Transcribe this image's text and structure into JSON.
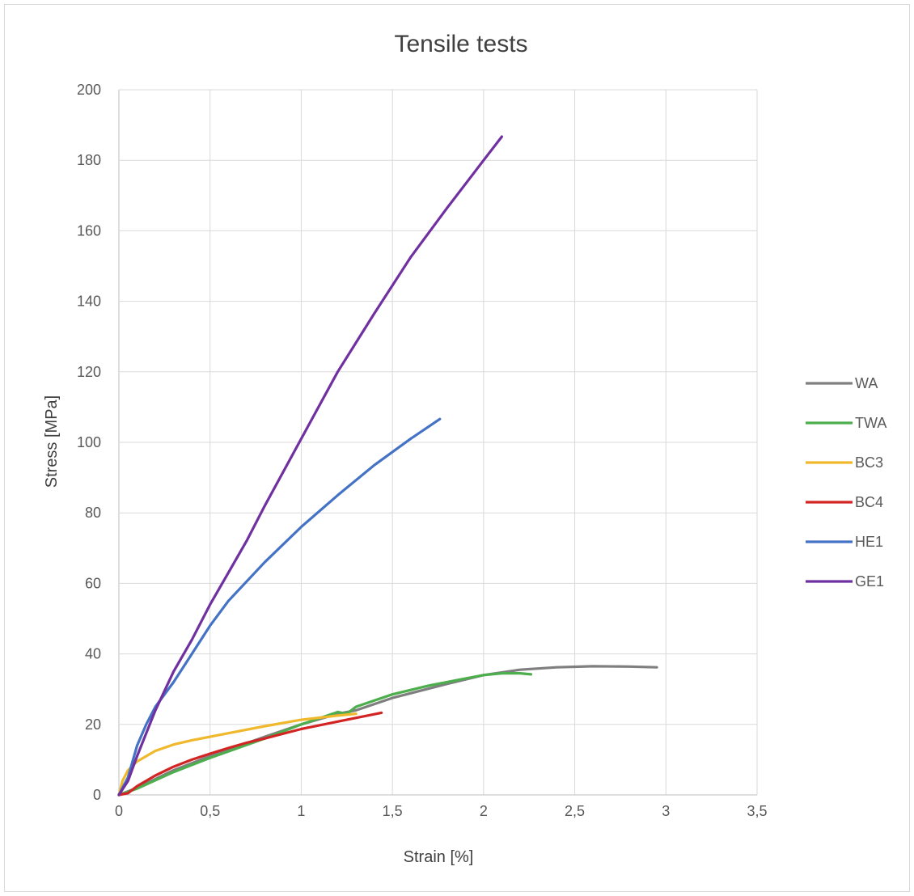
{
  "chart_data": {
    "type": "line",
    "title": "Tensile tests",
    "xlabel": "Strain [%]",
    "ylabel": "Stress [MPa]",
    "xlim": [
      0,
      3.5
    ],
    "ylim": [
      0,
      200
    ],
    "xticks": [
      "0",
      "0,5",
      "1",
      "1,5",
      "2",
      "2,5",
      "3",
      "3,5"
    ],
    "xtick_values": [
      0,
      0.5,
      1,
      1.5,
      2,
      2.5,
      3,
      3.5
    ],
    "yticks": [
      "0",
      "20",
      "40",
      "60",
      "80",
      "100",
      "120",
      "140",
      "160",
      "180",
      "200"
    ],
    "ytick_values": [
      0,
      20,
      40,
      60,
      80,
      100,
      120,
      140,
      160,
      180,
      200
    ],
    "grid": true,
    "legend_position": "right",
    "series": [
      {
        "name": "WA",
        "color": "#7f7f7f",
        "x": [
          0,
          0.1,
          0.3,
          0.5,
          0.8,
          1.0,
          1.2,
          1.3,
          1.5,
          1.8,
          2.0,
          2.2,
          2.4,
          2.6,
          2.8,
          2.95
        ],
        "y": [
          0,
          2,
          7,
          11,
          16.5,
          20,
          23,
          24,
          27.5,
          31.5,
          34,
          35.5,
          36.2,
          36.5,
          36.4,
          36.2
        ]
      },
      {
        "name": "TWA",
        "color": "#4cae4c",
        "x": [
          0,
          0.1,
          0.3,
          0.5,
          0.8,
          1.0,
          1.2,
          1.25,
          1.3,
          1.5,
          1.7,
          1.9,
          2.0,
          2.1,
          2.2,
          2.26
        ],
        "y": [
          0,
          1.8,
          6.5,
          10.5,
          16,
          20,
          23.5,
          23,
          25,
          28.5,
          31,
          33,
          34,
          34.5,
          34.5,
          34.2
        ]
      },
      {
        "name": "BC3",
        "color": "#f0b82c",
        "x": [
          0,
          0.02,
          0.05,
          0.1,
          0.2,
          0.3,
          0.4,
          0.5,
          0.6,
          0.8,
          1.0,
          1.2,
          1.3
        ],
        "y": [
          0,
          4,
          7,
          9.5,
          12.5,
          14.3,
          15.5,
          16.5,
          17.5,
          19.5,
          21.3,
          22.5,
          23
        ]
      },
      {
        "name": "BC4",
        "color": "#d32424",
        "x": [
          0,
          0.05,
          0.1,
          0.2,
          0.3,
          0.4,
          0.5,
          0.6,
          0.7,
          0.8,
          1.0,
          1.2,
          1.44
        ],
        "y": [
          0,
          0.5,
          2.5,
          5.5,
          8,
          10,
          11.7,
          13.3,
          14.8,
          16,
          18.7,
          20.8,
          23.3
        ]
      },
      {
        "name": "HE1",
        "color": "#4472c4",
        "x": [
          0,
          0.05,
          0.1,
          0.15,
          0.2,
          0.3,
          0.4,
          0.5,
          0.6,
          0.8,
          1.0,
          1.2,
          1.4,
          1.6,
          1.76
        ],
        "y": [
          0,
          5,
          14,
          20,
          25,
          32,
          40,
          48,
          55,
          66,
          76,
          85,
          93.5,
          101,
          106.6
        ]
      },
      {
        "name": "GE1",
        "color": "#7030a0",
        "x": [
          0,
          0.05,
          0.1,
          0.2,
          0.3,
          0.4,
          0.5,
          0.6,
          0.7,
          0.8,
          1.0,
          1.2,
          1.4,
          1.6,
          1.8,
          2.0,
          2.1
        ],
        "y": [
          0,
          4,
          11,
          24,
          35,
          44,
          54,
          63,
          72,
          82,
          101,
          120,
          136.5,
          152.5,
          166.5,
          180,
          186.7
        ]
      }
    ]
  }
}
